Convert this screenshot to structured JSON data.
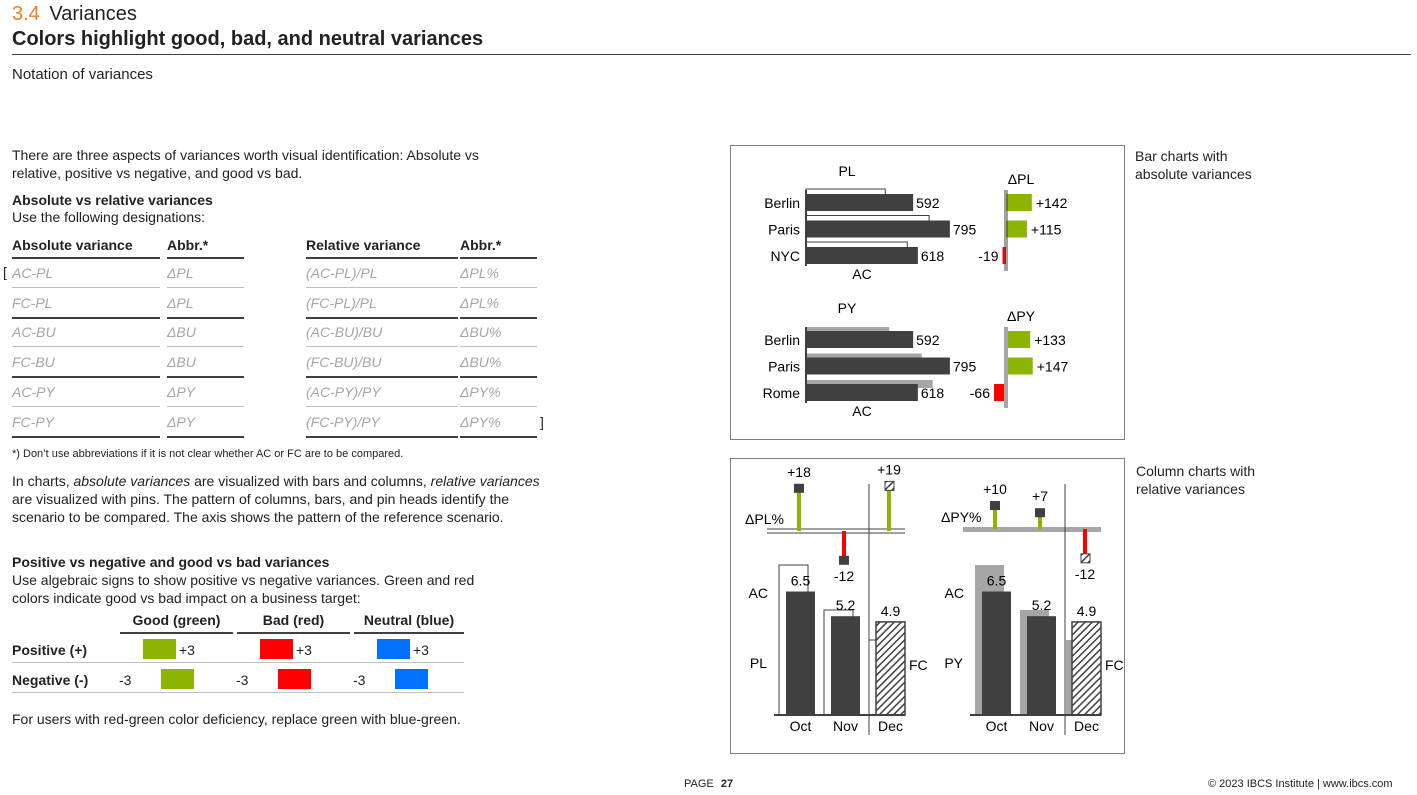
{
  "header": {
    "section_number": "3.4",
    "section_title": "Variances",
    "headline": "Colors highlight good, bad, and neutral variances",
    "subtitle": "Notation of variances"
  },
  "intro": "There are three aspects of variances worth visual identification: Absolute vs relative, positive vs negative, and good vs bad.",
  "abs_rel": {
    "heading": "Absolute vs relative variances",
    "sub": "Use the following designations:",
    "col_headers": [
      "Absolute variance",
      "Abbr.*",
      "Relative variance",
      "Abbr.*"
    ],
    "rows": [
      [
        "AC-PL",
        "ΔPL",
        "(AC-PL)/PL",
        "ΔPL%"
      ],
      [
        "FC-PL",
        "ΔPL",
        "(FC-PL)/PL",
        "ΔPL%"
      ],
      [
        "AC-BU",
        "ΔBU",
        "(AC-BU)/BU",
        "ΔBU%"
      ],
      [
        "FC-BU",
        "ΔBU",
        "(FC-BU)/BU",
        "ΔBU%"
      ],
      [
        "AC-PY",
        "ΔPY",
        "(AC-PY)/PY",
        "ΔPY%"
      ],
      [
        "FC-PY",
        "ΔPY",
        "(FC-PY)/PY",
        "ΔPY%"
      ]
    ],
    "bracket_open": "[",
    "bracket_close": "]",
    "footnote": "*) Don’t use abbreviations if it is not clear whether AC or FC are to be compared."
  },
  "charts_text": {
    "p1": "In charts, ",
    "p1_it1": "absolute variances",
    "p2": " are visualized with bars and columns, ",
    "p2_it2": "relative variances",
    "p3": " are visualized with pins. The pattern of columns, bars, and pin heads identify the scenario to be compared. The axis shows the pattern of the reference scenario."
  },
  "pos_neg": {
    "heading": "Positive vs negative and good vs bad variances",
    "sub": "Use algebraic signs to show positive vs negative variances. Green and red colors indicate good vs bad impact on a business target:",
    "col_headers": [
      "Good (green)",
      "Bad (red)",
      "Neutral (blue)"
    ],
    "row_labels": [
      "Positive (+)",
      "Negative (-)"
    ],
    "pos_value": "+3",
    "neg_value": "-3",
    "colors": {
      "good": "#8cb400",
      "bad": "#ff0000",
      "neutral": "#0070ff"
    }
  },
  "rg_note": "For users with red-green color deficiency, replace green with blue-green.",
  "bar_panel": {
    "caption_line1": "Bar charts with",
    "caption_line2": "absolute variances",
    "top": {
      "ref_label": "PL",
      "axis_label": "AC",
      "var_label": "ΔPL",
      "categories": [
        "Berlin",
        "Paris",
        "NYC"
      ],
      "ac": [
        592,
        795,
        618
      ],
      "variance": [
        "+142",
        "+115",
        "-19"
      ]
    },
    "bottom": {
      "ref_label": "PY",
      "axis_label": "AC",
      "var_label": "ΔPY",
      "categories": [
        "Berlin",
        "Paris",
        "Rome"
      ],
      "ac": [
        592,
        795,
        618
      ],
      "variance": [
        "+133",
        "+147",
        "-66"
      ]
    }
  },
  "col_panel": {
    "caption_line1": "Column charts with",
    "caption_line2": "relative variances",
    "months": [
      "Oct",
      "Nov",
      "Dec"
    ],
    "left": {
      "var_label": "ΔPL%",
      "pins": [
        "+18",
        "-12",
        "+19"
      ],
      "values": [
        "6.5",
        "5.2",
        "4.9"
      ],
      "ac_label": "AC",
      "ref_label": "PL",
      "fc_label": "FC"
    },
    "right": {
      "var_label": "ΔPY%",
      "pins": [
        "+10",
        "+7",
        "-12"
      ],
      "values": [
        "6.5",
        "5.2",
        "4.9"
      ],
      "ac_label": "AC",
      "ref_label": "PY",
      "fc_label": "FC"
    }
  },
  "footer": {
    "page_label": "PAGE",
    "page_number": "27",
    "copyright": "© 2023 IBCS Institute | www.ibcs.com"
  }
}
